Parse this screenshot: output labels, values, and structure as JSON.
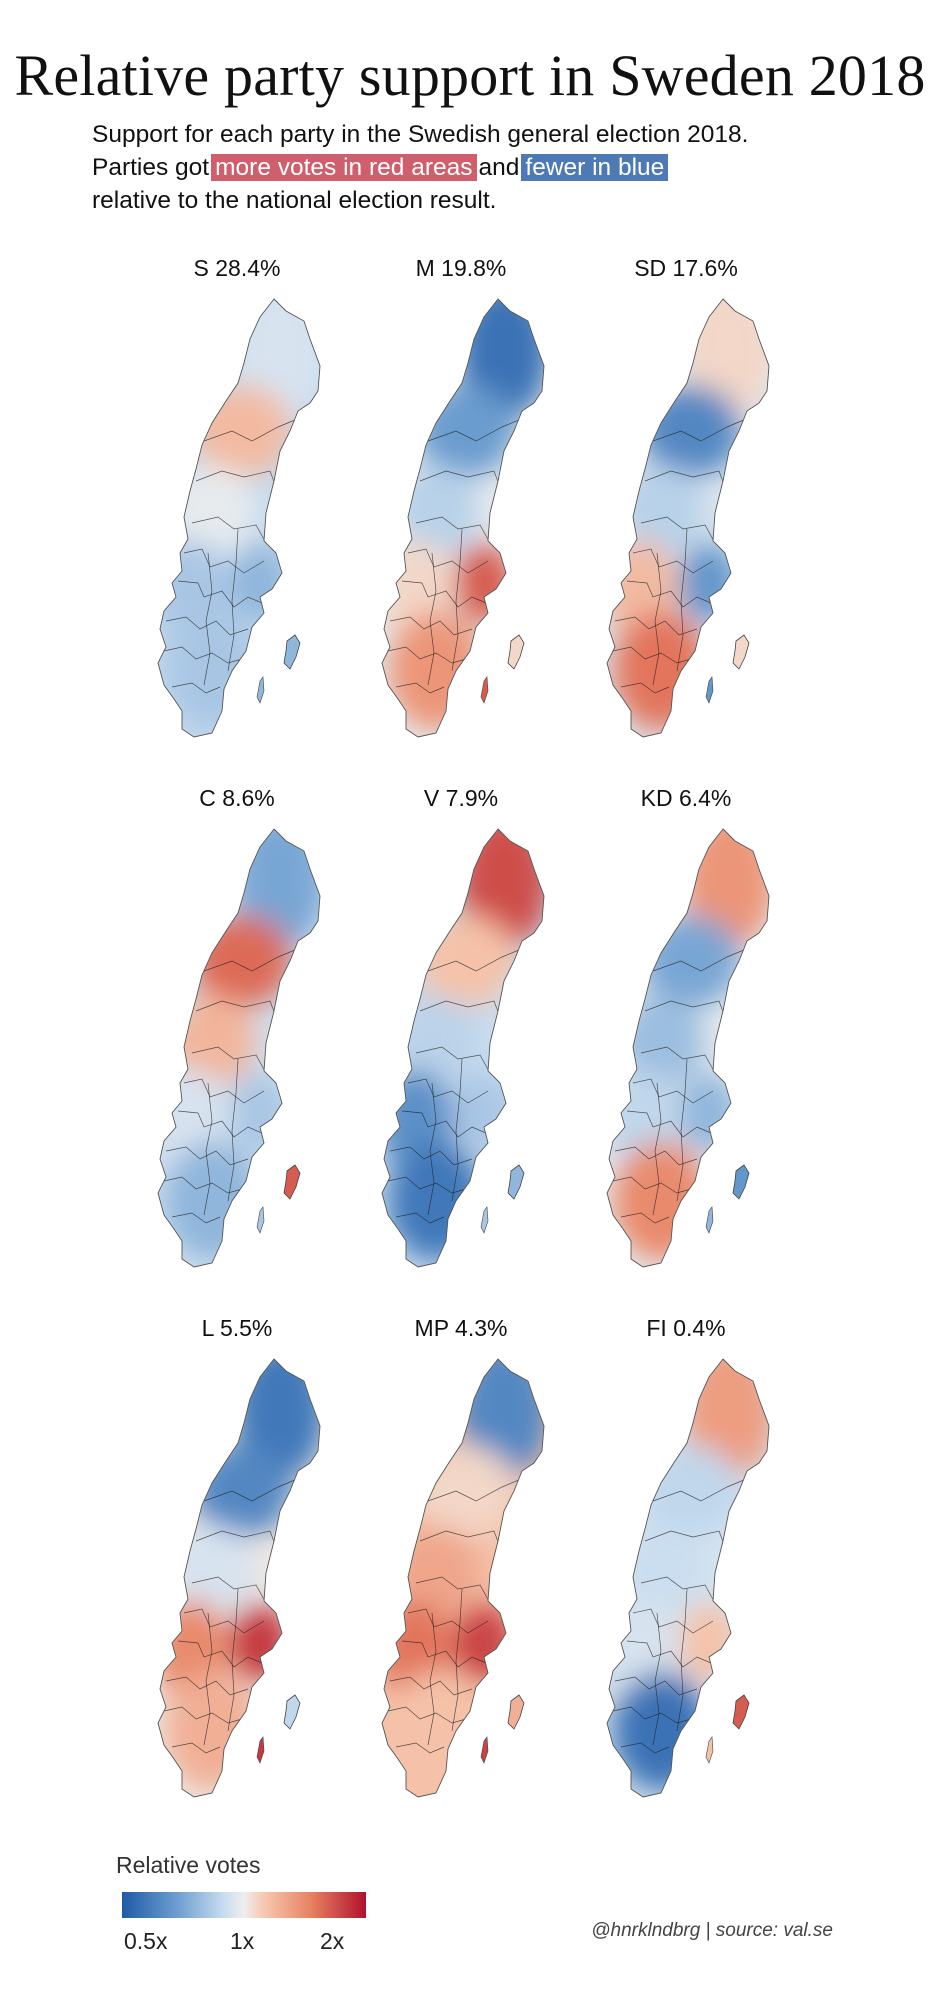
{
  "title": "Relative party support in Sweden 2018",
  "subtitle": {
    "line1": "Support for each party in the Swedish general election 2018.",
    "line2_prefix": "Parties got",
    "highlight_red": "more votes in red areas",
    "line2_mid": "and",
    "highlight_blue": "fewer in blue",
    "line3": "relative to the national election result."
  },
  "colors": {
    "low": "#1f5aa6",
    "neutral": "#eeeeee",
    "high": "#b0112d",
    "highlight_red": "#cf5f6c",
    "highlight_blue": "#4d79b4"
  },
  "maps": [
    {
      "label": "S 28.4%",
      "north": 0.45,
      "midnorth": 0.62,
      "west": 0.35,
      "east": 0.3,
      "south": 0.35,
      "gotland": 0.3
    },
    {
      "label": "M 19.8%",
      "north": 0.08,
      "midnorth": 0.22,
      "west": 0.55,
      "east": 0.85,
      "south": 0.72,
      "gotland": 0.55
    },
    {
      "label": "SD 17.6%",
      "north": 0.55,
      "midnorth": 0.15,
      "west": 0.62,
      "east": 0.2,
      "south": 0.8,
      "gotland": 0.55
    },
    {
      "label": "C 8.6%",
      "north": 0.25,
      "midnorth": 0.82,
      "west": 0.45,
      "east": 0.35,
      "south": 0.3,
      "gotland": 0.85
    },
    {
      "label": "V 7.9%",
      "north": 0.88,
      "midnorth": 0.6,
      "west": 0.18,
      "east": 0.35,
      "south": 0.1,
      "gotland": 0.3
    },
    {
      "label": "KD 6.4%",
      "north": 0.72,
      "midnorth": 0.25,
      "west": 0.4,
      "east": 0.3,
      "south": 0.75,
      "gotland": 0.2
    },
    {
      "label": "L 5.5%",
      "north": 0.1,
      "midnorth": 0.15,
      "west": 0.75,
      "east": 0.92,
      "south": 0.65,
      "gotland": 0.4
    },
    {
      "label": "MP 4.3%",
      "north": 0.15,
      "midnorth": 0.55,
      "west": 0.8,
      "east": 0.9,
      "south": 0.6,
      "gotland": 0.65
    },
    {
      "label": "FI 0.4%",
      "north": 0.7,
      "midnorth": 0.4,
      "west": 0.45,
      "east": 0.6,
      "south": 0.08,
      "gotland": 0.85
    }
  ],
  "legend": {
    "title": "Relative votes",
    "ticks": [
      "0.5x",
      "1x",
      "2x"
    ]
  },
  "credit": "@hnrklndbrg | source: val.se"
}
